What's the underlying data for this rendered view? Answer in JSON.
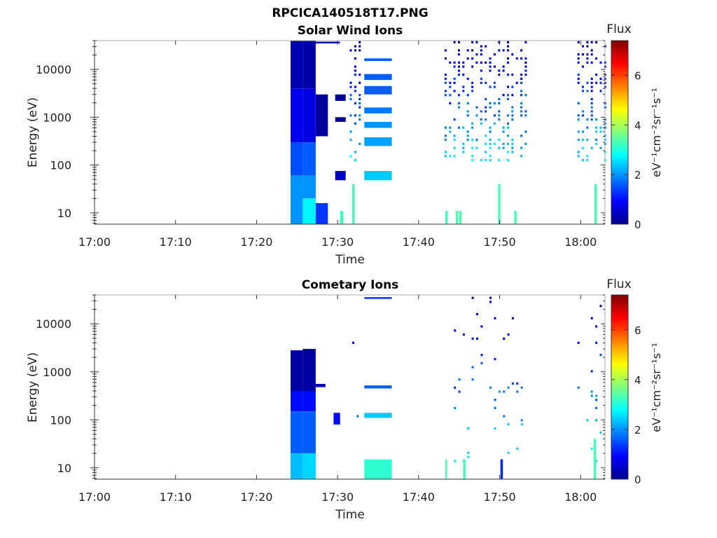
{
  "figure_title": "RPCICA140518T17.PNG",
  "chart_data": [
    {
      "type": "heatmap",
      "title": "Solar Wind Ions",
      "xlabel": "Time",
      "ylabel": "Energy (eV)",
      "x_ticks": [
        "17:00",
        "17:10",
        "17:20",
        "17:30",
        "17:40",
        "17:50",
        "18:00"
      ],
      "y_ticks": [
        "10",
        "100",
        "1000",
        "10000"
      ],
      "xlim_minutes_after_1700": [
        0,
        63
      ],
      "ylim_eV": [
        5.8,
        40000
      ],
      "y_scale": "log",
      "colorbar": {
        "label": "Flux",
        "unit_label": "eV⁻¹cm⁻²sr⁻¹s⁻¹",
        "range": [
          0,
          7.4
        ],
        "ticks": [
          "0",
          "2",
          "4",
          "6"
        ],
        "colormap": "jet"
      },
      "blocks": [
        {
          "t0": 24.2,
          "t1": 25.7,
          "e0": 4000,
          "e1": 40000,
          "v": 0.35
        },
        {
          "t0": 24.2,
          "t1": 25.7,
          "e0": 300,
          "e1": 4000,
          "v": 0.8
        },
        {
          "t0": 24.2,
          "t1": 25.7,
          "e0": 60,
          "e1": 300,
          "v": 1.5
        },
        {
          "t0": 24.2,
          "t1": 25.7,
          "e0": 5.8,
          "e1": 60,
          "v": 2.0
        },
        {
          "t0": 25.7,
          "t1": 27.3,
          "e0": 4000,
          "e1": 40000,
          "v": 0.3
        },
        {
          "t0": 25.7,
          "t1": 27.3,
          "e0": 300,
          "e1": 4000,
          "v": 0.7
        },
        {
          "t0": 25.7,
          "t1": 27.3,
          "e0": 60,
          "e1": 300,
          "v": 1.6
        },
        {
          "t0": 25.7,
          "t1": 27.3,
          "e0": 20,
          "e1": 60,
          "v": 2.0
        },
        {
          "t0": 25.7,
          "t1": 27.3,
          "e0": 5.8,
          "e1": 20,
          "v": 2.7
        },
        {
          "t0": 27.3,
          "t1": 28.8,
          "e0": 5.8,
          "e1": 16,
          "v": 1.3
        },
        {
          "t0": 27.3,
          "t1": 28.8,
          "e0": 400,
          "e1": 3000,
          "v": 0.2
        },
        {
          "t0": 27.3,
          "t1": 30.3,
          "e0": 35000,
          "e1": 38000,
          "v": 0.3
        },
        {
          "t0": 29.7,
          "t1": 31.0,
          "e0": 2200,
          "e1": 3000,
          "v": 0.2
        },
        {
          "t0": 29.7,
          "t1": 31.0,
          "e0": 800,
          "e1": 1000,
          "v": 0.2
        },
        {
          "t0": 29.7,
          "t1": 31.0,
          "e0": 48,
          "e1": 75,
          "v": 0.5
        },
        {
          "t0": 30.3,
          "t1": 30.7,
          "e0": 5.8,
          "e1": 11,
          "v": 3.3
        },
        {
          "t0": 31.8,
          "t1": 32.1,
          "e0": 5.8,
          "e1": 40,
          "v": 3.3
        },
        {
          "t0": 33.3,
          "t1": 36.7,
          "e0": 48,
          "e1": 75,
          "v": 2.4
        },
        {
          "t0": 33.3,
          "t1": 36.7,
          "e0": 6000,
          "e1": 8000,
          "v": 1.6
        },
        {
          "t0": 33.3,
          "t1": 36.7,
          "e0": 3000,
          "e1": 4500,
          "v": 1.6
        },
        {
          "t0": 33.3,
          "t1": 36.7,
          "e0": 1200,
          "e1": 1600,
          "v": 1.8
        },
        {
          "t0": 33.3,
          "t1": 36.7,
          "e0": 600,
          "e1": 800,
          "v": 2.0
        },
        {
          "t0": 33.3,
          "t1": 36.7,
          "e0": 250,
          "e1": 380,
          "v": 2.1
        },
        {
          "t0": 33.3,
          "t1": 36.7,
          "e0": 15000,
          "e1": 17000,
          "v": 1.6
        },
        {
          "t0": 43.3,
          "t1": 43.6,
          "e0": 5.8,
          "e1": 11,
          "v": 3.3
        },
        {
          "t0": 44.6,
          "t1": 44.9,
          "e0": 5.8,
          "e1": 11,
          "v": 3.3
        },
        {
          "t0": 45.0,
          "t1": 45.3,
          "e0": 5.8,
          "e1": 11,
          "v": 3.4
        },
        {
          "t0": 49.8,
          "t1": 50.1,
          "e0": 5.8,
          "e1": 40,
          "v": 3.3
        },
        {
          "t0": 51.8,
          "t1": 52.1,
          "e0": 5.8,
          "e1": 11,
          "v": 3.3
        },
        {
          "t0": 61.7,
          "t1": 62.0,
          "e0": 5.8,
          "e1": 40,
          "v": 3.3
        }
      ],
      "scatter": {
        "ranges": [
          [
            31.5,
            33.0
          ],
          [
            43.2,
            53.2
          ],
          [
            59.6,
            63.0
          ]
        ],
        "emin": 110,
        "emax": 35000,
        "density": 0.35
      }
    },
    {
      "type": "heatmap",
      "title": "Cometary Ions",
      "xlabel": "Time",
      "ylabel": "Energy (eV)",
      "x_ticks": [
        "17:00",
        "17:10",
        "17:20",
        "17:30",
        "17:40",
        "17:50",
        "18:00"
      ],
      "y_ticks": [
        "10",
        "100",
        "1000",
        "10000"
      ],
      "xlim_minutes_after_1700": [
        0,
        63
      ],
      "ylim_eV": [
        5.8,
        40000
      ],
      "y_scale": "log",
      "colorbar": {
        "label": "Flux",
        "unit_label": "eV⁻¹cm⁻²sr⁻¹s⁻¹",
        "range": [
          0,
          7.4
        ],
        "ticks": [
          "0",
          "2",
          "4",
          "6"
        ],
        "colormap": "jet"
      },
      "blocks": [
        {
          "t0": 24.2,
          "t1": 25.7,
          "e0": 400,
          "e1": 2800,
          "v": 0.25
        },
        {
          "t0": 24.2,
          "t1": 25.7,
          "e0": 150,
          "e1": 400,
          "v": 1.0
        },
        {
          "t0": 24.2,
          "t1": 25.7,
          "e0": 20,
          "e1": 150,
          "v": 1.6
        },
        {
          "t0": 24.2,
          "t1": 25.7,
          "e0": 5.8,
          "e1": 20,
          "v": 2.3
        },
        {
          "t0": 25.7,
          "t1": 27.3,
          "e0": 400,
          "e1": 3000,
          "v": 0.25
        },
        {
          "t0": 25.7,
          "t1": 27.3,
          "e0": 150,
          "e1": 400,
          "v": 1.0
        },
        {
          "t0": 25.7,
          "t1": 27.3,
          "e0": 20,
          "e1": 150,
          "v": 1.6
        },
        {
          "t0": 25.7,
          "t1": 27.3,
          "e0": 5.8,
          "e1": 20,
          "v": 2.5
        },
        {
          "t0": 27.3,
          "t1": 28.5,
          "e0": 480,
          "e1": 560,
          "v": 0.4
        },
        {
          "t0": 29.5,
          "t1": 30.3,
          "e0": 80,
          "e1": 140,
          "v": 1.0
        },
        {
          "t0": 33.3,
          "t1": 36.7,
          "e0": 5.8,
          "e1": 15,
          "v": 3.1
        },
        {
          "t0": 33.3,
          "t1": 36.7,
          "e0": 110,
          "e1": 140,
          "v": 2.4
        },
        {
          "t0": 33.3,
          "t1": 36.7,
          "e0": 450,
          "e1": 520,
          "v": 1.6
        },
        {
          "t0": 33.3,
          "t1": 36.7,
          "e0": 33000,
          "e1": 36000,
          "v": 1.4
        },
        {
          "t0": 43.3,
          "t1": 43.5,
          "e0": 5.8,
          "e1": 15,
          "v": 3.3
        },
        {
          "t0": 45.5,
          "t1": 45.8,
          "e0": 5.8,
          "e1": 15,
          "v": 3.3
        },
        {
          "t0": 50.1,
          "t1": 50.4,
          "e0": 5.8,
          "e1": 15,
          "v": 1.2
        },
        {
          "t0": 61.6,
          "t1": 61.9,
          "e0": 5.8,
          "e1": 40,
          "v": 3.3
        }
      ],
      "scatter": {
        "ranges": [
          [
            31.8,
            32.6
          ],
          [
            43.8,
            52.6
          ],
          [
            59.6,
            63.0
          ]
        ],
        "emin": 12,
        "emax": 40000,
        "density": 0.06
      }
    }
  ]
}
